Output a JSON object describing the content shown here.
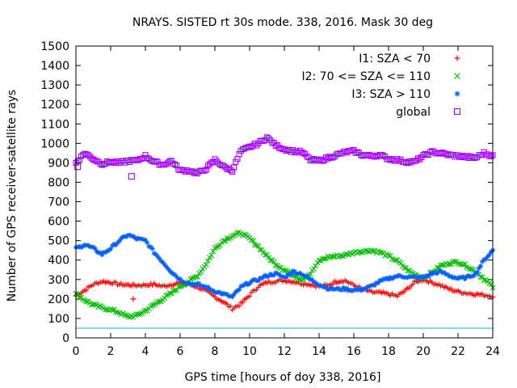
{
  "chart_data": {
    "type": "scatter",
    "title": "NRAYS. SISTED rt 30s mode. 338, 2016. Mask 30 deg",
    "xlabel": "GPS time [hours of doy 338, 2016]",
    "ylabel": "Number of GPS receiver-satellite rays",
    "xlim": [
      0,
      24
    ],
    "ylim": [
      0,
      1500
    ],
    "xticks": [
      0,
      2,
      4,
      6,
      8,
      10,
      12,
      14,
      16,
      18,
      20,
      22,
      24
    ],
    "yticks": [
      0,
      100,
      200,
      300,
      400,
      500,
      600,
      700,
      800,
      900,
      1000,
      1100,
      1200,
      1300,
      1400,
      1500
    ],
    "grid": false,
    "legend_position": "top-right",
    "threshold_line": {
      "y": 50,
      "color": "#5fd3d3"
    },
    "series": [
      {
        "name": "I1: SZA < 70",
        "marker": "+",
        "color": "#ff0000",
        "x": [
          0,
          0.5,
          1,
          1.5,
          2,
          2.5,
          3,
          3.5,
          4,
          4.5,
          5,
          5.5,
          6,
          6.5,
          7,
          7.5,
          8,
          8.5,
          9,
          9.5,
          10,
          10.5,
          11,
          11.5,
          12,
          12.5,
          13,
          13.5,
          14,
          14.5,
          15,
          15.5,
          16,
          16.5,
          17,
          17.5,
          18,
          18.5,
          19,
          19.5,
          20,
          20.5,
          21,
          21.5,
          22,
          22.5,
          23,
          23.5,
          24
        ],
        "values": [
          215,
          245,
          275,
          290,
          285,
          275,
          272,
          270,
          272,
          275,
          265,
          275,
          280,
          275,
          262,
          240,
          210,
          185,
          150,
          175,
          220,
          265,
          285,
          292,
          295,
          290,
          280,
          275,
          265,
          270,
          290,
          295,
          270,
          250,
          235,
          232,
          225,
          215,
          245,
          285,
          300,
          285,
          270,
          250,
          238,
          230,
          225,
          220,
          215
        ]
      },
      {
        "name": "I2: 70 <= SZA <= 110",
        "marker": "x",
        "color": "#00c000",
        "x": [
          0,
          0.5,
          1,
          1.5,
          2,
          2.5,
          3,
          3.5,
          4,
          4.5,
          5,
          5.5,
          6,
          6.5,
          7,
          7.5,
          8,
          8.5,
          9,
          9.5,
          10,
          10.5,
          11,
          11.5,
          12,
          12.5,
          13,
          13.5,
          14,
          14.5,
          15,
          15.5,
          16,
          16.5,
          17,
          17.5,
          18,
          18.5,
          19,
          19.5,
          20,
          20.5,
          21,
          21.5,
          22,
          22.5,
          23,
          23.5,
          24
        ],
        "values": [
          225,
          195,
          170,
          155,
          145,
          130,
          108,
          115,
          140,
          170,
          200,
          230,
          265,
          290,
          320,
          380,
          460,
          500,
          525,
          540,
          510,
          470,
          420,
          380,
          350,
          325,
          300,
          330,
          395,
          415,
          420,
          425,
          440,
          445,
          450,
          440,
          420,
          395,
          355,
          325,
          310,
          335,
          370,
          385,
          390,
          370,
          340,
          305,
          260
        ]
      },
      {
        "name": "I3: SZA > 110",
        "marker": "*",
        "color": "#0060ff",
        "x": [
          0,
          0.5,
          1,
          1.5,
          2,
          2.5,
          3,
          3.5,
          4,
          4.5,
          5,
          5.5,
          6,
          6.5,
          7,
          7.5,
          8,
          8.5,
          9,
          9.5,
          10,
          10.5,
          11,
          11.5,
          12,
          12.5,
          13,
          13.5,
          14,
          14.5,
          15,
          15.5,
          16,
          16.5,
          17,
          17.5,
          18,
          18.5,
          19,
          19.5,
          20,
          20.5,
          21,
          21.5,
          22,
          22.5,
          23,
          23.5,
          24
        ],
        "values": [
          460,
          480,
          460,
          430,
          460,
          500,
          530,
          510,
          500,
          440,
          390,
          340,
          300,
          280,
          275,
          260,
          240,
          225,
          210,
          260,
          285,
          300,
          320,
          330,
          310,
          340,
          330,
          300,
          275,
          255,
          250,
          252,
          245,
          250,
          265,
          290,
          305,
          318,
          315,
          310,
          310,
          330,
          340,
          320,
          305,
          310,
          330,
          400,
          450
        ]
      },
      {
        "name": "global",
        "marker": "square",
        "color": "#a000ff",
        "x": [
          0,
          0.5,
          1,
          1.5,
          2,
          2.5,
          3,
          3.5,
          4,
          4.5,
          5,
          5.5,
          6,
          6.5,
          7,
          7.5,
          8,
          8.5,
          9,
          9.5,
          10,
          10.5,
          11,
          11.5,
          12,
          12.5,
          13,
          13.5,
          14,
          14.5,
          15,
          15.5,
          16,
          16.5,
          17,
          17.5,
          18,
          18.5,
          19,
          19.5,
          20,
          20.5,
          21,
          21.5,
          22,
          22.5,
          23,
          23.5,
          24
        ],
        "values": [
          900,
          950,
          920,
          895,
          905,
          900,
          910,
          910,
          935,
          905,
          890,
          910,
          860,
          860,
          845,
          870,
          915,
          880,
          860,
          960,
          980,
          1000,
          1030,
          990,
          970,
          960,
          955,
          915,
          910,
          925,
          940,
          955,
          960,
          940,
          935,
          940,
          920,
          915,
          905,
          905,
          935,
          955,
          950,
          940,
          935,
          930,
          925,
          950,
          935
        ]
      }
    ],
    "outliers": [
      {
        "series": "I1: SZA < 70",
        "x": 3.3,
        "y": 200
      },
      {
        "series": "global",
        "x": 3.2,
        "y": 830
      },
      {
        "series": "global",
        "x": 0.1,
        "y": 880
      }
    ]
  }
}
